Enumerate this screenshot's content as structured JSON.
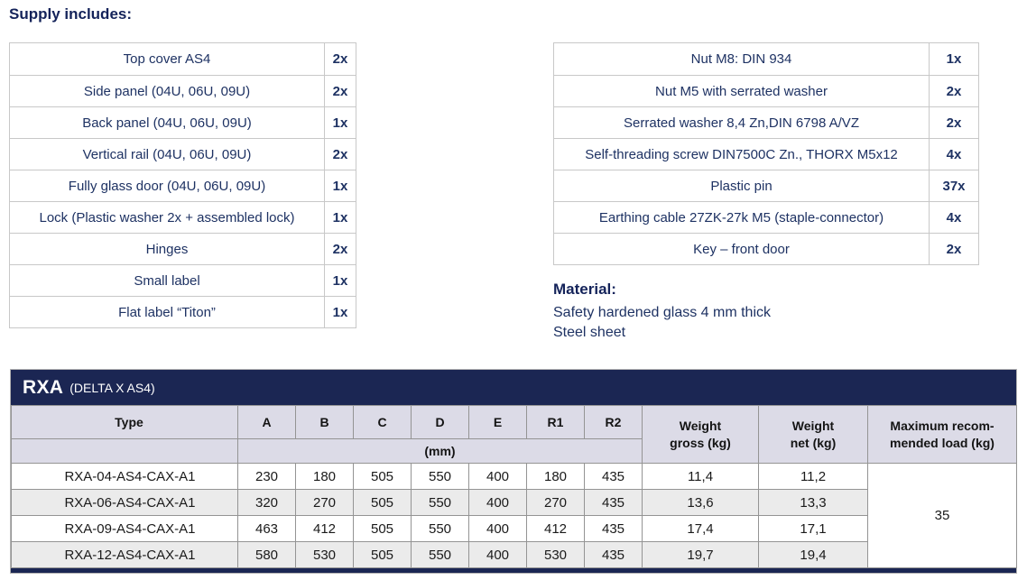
{
  "page": {
    "supply_heading": "Supply includes:"
  },
  "supply_left": {
    "rows": [
      {
        "item": "Top cover AS4",
        "qty": "2x"
      },
      {
        "item": "Side panel (04U, 06U, 09U)",
        "qty": "2x"
      },
      {
        "item": "Back panel (04U, 06U, 09U)",
        "qty": "1x"
      },
      {
        "item": "Vertical rail (04U, 06U, 09U)",
        "qty": "2x"
      },
      {
        "item": "Fully glass door (04U, 06U, 09U)",
        "qty": "1x"
      },
      {
        "item": "Lock (Plastic washer 2x + assembled lock)",
        "qty": "1x"
      },
      {
        "item": "Hinges",
        "qty": "2x"
      },
      {
        "item": "Small label",
        "qty": "1x"
      },
      {
        "item": "Flat label “Titon”",
        "qty": "1x"
      }
    ]
  },
  "supply_right": {
    "rows": [
      {
        "item": "Nut M8: DIN 934",
        "qty": "1x"
      },
      {
        "item": "Nut M5 with serrated washer",
        "qty": "2x"
      },
      {
        "item": "Serrated washer 8,4 Zn,DIN 6798 A/VZ",
        "qty": "2x"
      },
      {
        "item": "Self-threading screw DIN7500C Zn., THORX M5x12",
        "qty": "4x"
      },
      {
        "item": "Plastic pin",
        "qty": "37x"
      },
      {
        "item": "Earthing cable 27ZK-27k M5 (staple-connector)",
        "qty": "4x"
      },
      {
        "item": "Key – front door",
        "qty": "2x"
      }
    ]
  },
  "material": {
    "heading": "Material:",
    "lines": [
      "Safety hardened glass 4 mm thick",
      "Steel sheet"
    ]
  },
  "rxa_table": {
    "title": "RXA",
    "subtitle": "(DELTA X AS4)",
    "type_label": "Type",
    "dim_columns": [
      "A",
      "B",
      "C",
      "D",
      "E",
      "R1",
      "R2"
    ],
    "unit_label": "(mm)",
    "weight_gross_label": "Weight\ngross (kg)",
    "weight_net_label": "Weight\nnet (kg)",
    "max_load_label": "Maximum recom-\nmended load (kg)",
    "rows": [
      {
        "type": "RXA-04-AS4-CAX-A1",
        "dims": [
          "230",
          "180",
          "505",
          "550",
          "400",
          "180",
          "435"
        ],
        "weight_gross": "11,4",
        "weight_net": "11,2"
      },
      {
        "type": "RXA-06-AS4-CAX-A1",
        "dims": [
          "320",
          "270",
          "505",
          "550",
          "400",
          "270",
          "435"
        ],
        "weight_gross": "13,6",
        "weight_net": "13,3"
      },
      {
        "type": "RXA-09-AS4-CAX-A1",
        "dims": [
          "463",
          "412",
          "505",
          "550",
          "400",
          "412",
          "435"
        ],
        "weight_gross": "17,4",
        "weight_net": "17,1"
      },
      {
        "type": "RXA-12-AS4-CAX-A1",
        "dims": [
          "580",
          "530",
          "505",
          "550",
          "400",
          "530",
          "435"
        ],
        "weight_gross": "19,7",
        "weight_net": "19,4"
      }
    ],
    "max_load_value": "35"
  },
  "colors": {
    "navy_bar": "#1b2653",
    "navy_text": "#1e3263",
    "heading_text": "#14235a",
    "header_row_bg": "#dcdbe7",
    "stripe_bg": "#ebebeb",
    "grid_line": "#949494",
    "supply_border": "#c8c8c8"
  }
}
